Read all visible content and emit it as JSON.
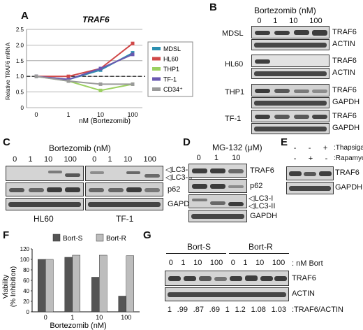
{
  "panels": {
    "A": "A",
    "B": "B",
    "C": "C",
    "D": "D",
    "E": "E",
    "F": "F",
    "G": "G"
  },
  "chart_data": [
    {
      "type": "line",
      "title": "TRAF6",
      "xlabel": "nM (Bortezomib)",
      "ylabel": "Relative TRAF6 mRNA",
      "x": [
        "0",
        "1",
        "10",
        "100"
      ],
      "ylim": [
        0,
        2.5
      ],
      "yticks": [
        "0",
        "0.5",
        "1.0",
        "1.5",
        "2.0",
        "2.5"
      ],
      "reference_line": 1.0,
      "legend_position": "right",
      "series": [
        {
          "name": "MDSL",
          "color": "#2b8fb0",
          "values": [
            1.0,
            0.9,
            1.2,
            1.75
          ]
        },
        {
          "name": "HL60",
          "color": "#d04848",
          "values": [
            1.0,
            1.0,
            1.25,
            2.05
          ]
        },
        {
          "name": "THP1",
          "color": "#9bd060",
          "values": [
            1.0,
            0.85,
            0.55,
            0.75
          ]
        },
        {
          "name": "TF-1",
          "color": "#6a58b0",
          "values": [
            1.0,
            0.9,
            1.25,
            1.7
          ]
        },
        {
          "name": "CD34⁺",
          "color": "#9a9a9a",
          "values": [
            1.0,
            0.85,
            0.75,
            0.75
          ]
        }
      ]
    },
    {
      "type": "bar",
      "xlabel": "Bortezomib (nM)",
      "ylabel": "Viability\n(% Inhibition)",
      "categories": [
        "0",
        "1",
        "10",
        "100"
      ],
      "ylim": [
        0,
        120
      ],
      "yticks": [
        "0",
        "20",
        "40",
        "60",
        "80",
        "100",
        "120"
      ],
      "legend_position": "top",
      "series": [
        {
          "name": "Bort-S",
          "color": "#555555",
          "values": [
            100,
            104,
            66,
            30
          ]
        },
        {
          "name": "Bort-R",
          "color": "#bdbdbd",
          "values": [
            100,
            108,
            108,
            107
          ]
        }
      ]
    }
  ],
  "blotB": {
    "title": "Bortezomib (nM)",
    "lanes": [
      "0",
      "1",
      "10",
      "100"
    ],
    "rows": [
      {
        "cell": "MDSL",
        "bands": [
          "TRAF6",
          "ACTIN"
        ]
      },
      {
        "cell": "HL60",
        "bands": [
          "TRAF6",
          "ACTIN"
        ]
      },
      {
        "cell": "THP1",
        "bands": [
          "TRAF6",
          "GAPDH"
        ]
      },
      {
        "cell": "TF-1",
        "bands": [
          "TRAF6",
          "GAPDH"
        ]
      }
    ]
  },
  "blotC": {
    "title": "Bortezomib (nM)",
    "lanes": [
      "0",
      "1",
      "10",
      "100"
    ],
    "cells": [
      "HL60",
      "TF-1"
    ],
    "bands": [
      "LC3-I",
      "LC3-II",
      "p62",
      "GAPDH"
    ]
  },
  "blotD": {
    "title": "MG-132 (μM)",
    "lanes": [
      "0",
      "1",
      "10"
    ],
    "bands": [
      "TRAF6",
      "p62",
      "LC3-I",
      "LC3-II",
      "GAPDH"
    ]
  },
  "blotE": {
    "treat1": ":Thapsigargin",
    "treat2": ":Rapamycin",
    "signs1": [
      "-",
      "-",
      "+"
    ],
    "signs2": [
      "-",
      "+",
      "-"
    ],
    "bands": [
      "TRAF6",
      "GAPDH"
    ]
  },
  "blotG": {
    "group1": "Bort-S",
    "group2": "Bort-R",
    "lanes": [
      "0",
      "1",
      "10",
      "100",
      "0",
      "1",
      "10",
      "100"
    ],
    "unit": ": nM Bort",
    "bands": [
      "TRAF6",
      "ACTIN"
    ],
    "ratios": [
      "1",
      ".99",
      ".87",
      ".69",
      "1",
      "1.2",
      "1.08",
      "1.03"
    ],
    "ratio_label": ":TRAF6/ACTIN"
  }
}
